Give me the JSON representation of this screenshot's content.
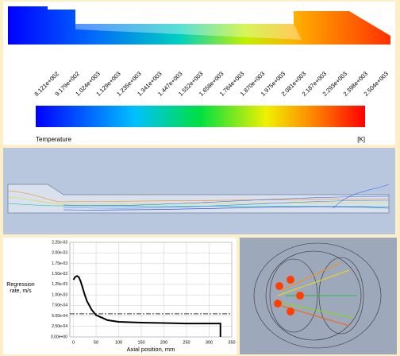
{
  "colorbar": {
    "labels": [
      "8.121e+002",
      "9.179e+002",
      "1.024e+003",
      "1.129e+003",
      "1.235e+003",
      "1.341e+003",
      "1.447e+003",
      "1.552e+003",
      "1.658e+003",
      "1.764e+003",
      "1.870e+003",
      "1.975e+003",
      "2.081e+003",
      "2.187e+003",
      "2.293e+003",
      "2.398e+003",
      "2.504e+003"
    ],
    "title": "Temperature",
    "unit": "[K]"
  },
  "chart_data": {
    "type": "line",
    "ylabel": "Regression rate, m/s",
    "xlabel": "Axial position, mm",
    "x": [
      0,
      4,
      8,
      12,
      16,
      20,
      25,
      30,
      40,
      50,
      75,
      100,
      150,
      200,
      250,
      300,
      325,
      325
    ],
    "series": [
      {
        "color": "#000000",
        "values": [
          0.00136,
          0.00143,
          0.00145,
          0.00142,
          0.00132,
          0.00118,
          0.001,
          0.00085,
          0.00065,
          0.00052,
          0.0004,
          0.00036,
          0.00034,
          0.00033,
          0.00032,
          0.00032,
          0.00032,
          0
        ]
      }
    ],
    "mean_line": {
      "value": 0.00055,
      "color": "#777777"
    },
    "xlim": [
      -8,
      350
    ],
    "xticks": [
      0,
      50,
      100,
      150,
      200,
      250,
      300,
      350
    ],
    "ylim": [
      0,
      0.00225
    ],
    "yticks": [
      {
        "value": 0,
        "label": "0.00e+00"
      },
      {
        "value": 0.00025,
        "label": "2.50e-04"
      },
      {
        "value": 0.0005,
        "label": "5.00e-04"
      },
      {
        "value": 0.00075,
        "label": "7.50e-04"
      },
      {
        "value": 0.001,
        "label": "1.00e-03"
      },
      {
        "value": 0.00125,
        "label": "1.25e-03"
      },
      {
        "value": 0.0015,
        "label": "1.50e-03"
      },
      {
        "value": 0.00175,
        "label": "1.75e-03"
      },
      {
        "value": 0.002,
        "label": "2.00e-03"
      },
      {
        "value": 0.00225,
        "label": "2.25e-03"
      }
    ],
    "grid": true
  }
}
